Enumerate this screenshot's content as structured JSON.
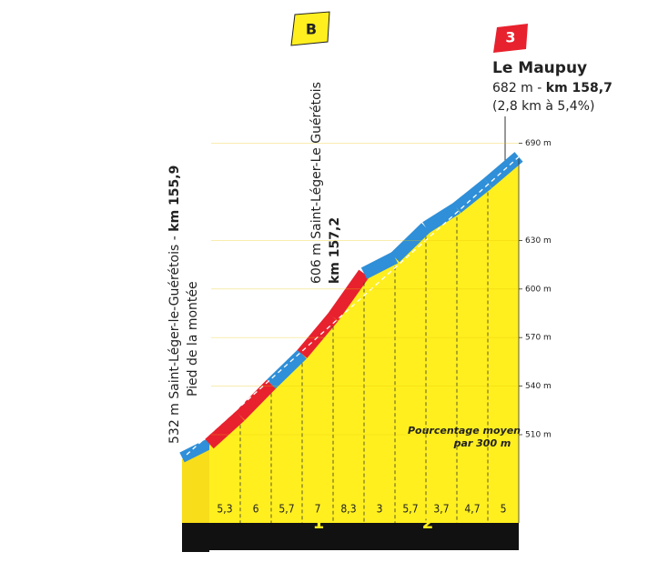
{
  "chart_data": {
    "type": "profile",
    "title": "Le Maupuy",
    "summit_elevation": "682 m - ",
    "summit_km": "km 158,7",
    "summit_note": "(2,8 km à 5,4%)",
    "summit_category": "3",
    "sprint_marker": "B",
    "start_label": "532 m Saint-Léger-le-Guérétois - ",
    "start_km": "km 155,9",
    "start_note": "Pied de la montée",
    "sprint_label": "606 m Saint-Léger-Le Guérétois",
    "sprint_km": "km 157,2",
    "legend_text": [
      "Pourcentage moyen",
      "par 300 m"
    ],
    "km_markers": [
      "1",
      "2"
    ],
    "values": [
      5.3,
      6,
      5.7,
      7,
      8.3,
      3,
      5.7,
      3.7,
      4.7,
      5
    ],
    "value_labels": [
      "5,3",
      "6",
      "5,7",
      "7",
      "8,3",
      "3",
      "5,7",
      "3,7",
      "4,7",
      "5"
    ],
    "colors": [
      "#e8212e",
      "#e8212e",
      "#2f8fd8",
      "#e8212e",
      "#e8212e",
      "#2f8fd8",
      "#2f8fd8",
      "#2f8fd8",
      "#2f8fd8",
      "#2f8fd8"
    ],
    "ylim": [
      500,
      700
    ],
    "yticks": [
      {
        "value": 510,
        "label": "510 m"
      },
      {
        "value": 540,
        "label": "540 m"
      },
      {
        "value": 570,
        "label": "570 m"
      },
      {
        "value": 600,
        "label": "600 m"
      },
      {
        "value": 630,
        "label": "630 m"
      },
      {
        "value": 690,
        "label": "690 m"
      }
    ]
  }
}
